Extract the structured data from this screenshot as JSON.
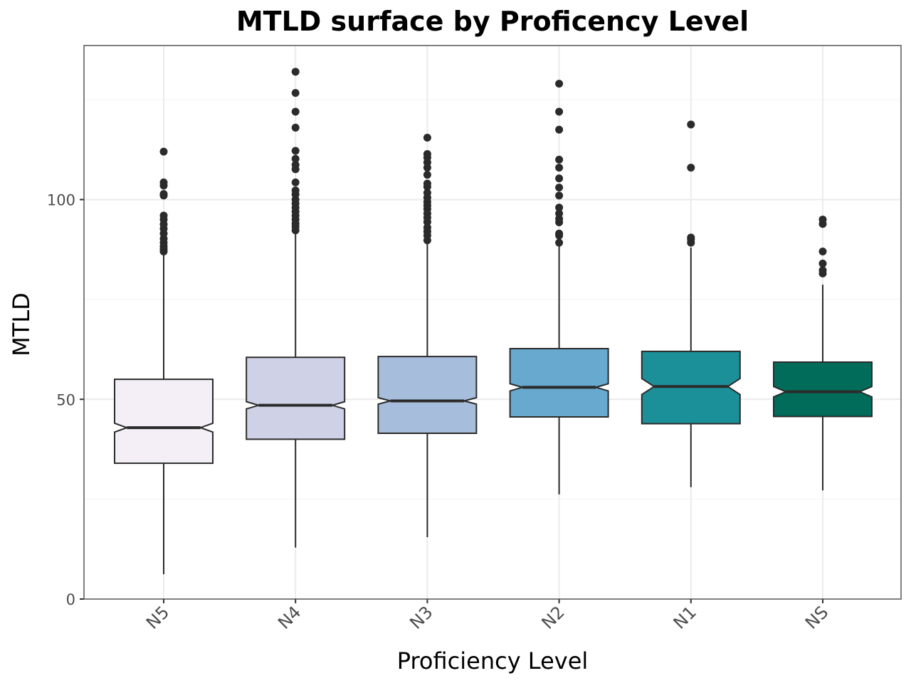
{
  "chart_data": {
    "type": "boxplot",
    "notched": true,
    "title": "MTLD surface by Proficency Level",
    "xlabel": "Proficiency Level",
    "ylabel": "MTLD",
    "ylim": [
      0,
      138
    ],
    "yticks": [
      0,
      50,
      100
    ],
    "grid": true,
    "categories": [
      "N5",
      "N4",
      "N3",
      "N2",
      "N1",
      "NS"
    ],
    "colors": [
      "#f4eef6",
      "#cfd1e6",
      "#a6bddb",
      "#67a9cf",
      "#1c9099",
      "#016c59"
    ],
    "boxes": [
      {
        "name": "N5",
        "whisker_low": 6.2,
        "q1": 34.0,
        "median": 42.9,
        "q3": 55.0,
        "whisker_high": 86.5,
        "notch_low": 41.8,
        "notch_high": 44.0,
        "outliers": [
          87.0,
          87.6,
          88.3,
          89.2,
          90.2,
          91.5,
          92.7,
          93.8,
          95.0,
          96.0,
          101.0,
          101.4,
          103.5,
          104.3,
          112.0
        ]
      },
      {
        "name": "N4",
        "whisker_low": 12.9,
        "q1": 40.0,
        "median": 48.5,
        "q3": 60.5,
        "whisker_high": 92.0,
        "notch_low": 47.6,
        "notch_high": 49.4,
        "outliers": [
          92.3,
          93.2,
          94.0,
          95.0,
          96.0,
          97.0,
          98.0,
          99.0,
          100.0,
          101.3,
          102.3,
          104.3,
          107.6,
          108.7,
          110.2,
          112.2,
          118.0,
          122.0,
          126.7,
          132.0
        ]
      },
      {
        "name": "N3",
        "whisker_low": 15.5,
        "q1": 41.5,
        "median": 49.6,
        "q3": 60.7,
        "whisker_high": 89.5,
        "notch_low": 48.8,
        "notch_high": 50.4,
        "outliers": [
          89.8,
          91.0,
          92.0,
          93.0,
          94.4,
          95.5,
          96.5,
          97.6,
          98.5,
          99.4,
          100.5,
          101.7,
          103.2,
          104.0,
          106.2,
          108.0,
          109.3,
          110.5,
          111.4,
          115.5
        ]
      },
      {
        "name": "N2",
        "whisker_low": 26.2,
        "q1": 45.6,
        "median": 53.0,
        "q3": 62.7,
        "whisker_high": 89.0,
        "notch_low": 52.1,
        "notch_high": 53.9,
        "outliers": [
          89.2,
          91.0,
          91.5,
          94.3,
          95.2,
          96.5,
          98.0,
          101.0,
          103.0,
          105.3,
          108.0,
          110.0,
          117.5,
          122.0,
          129.0
        ]
      },
      {
        "name": "N1",
        "whisker_low": 28.0,
        "q1": 43.9,
        "median": 53.2,
        "q3": 62.0,
        "whisker_high": 88.0,
        "notch_low": 51.2,
        "notch_high": 55.2,
        "outliers": [
          89.2,
          90.0,
          90.5,
          108.0,
          118.8
        ]
      },
      {
        "name": "NS",
        "whisker_low": 27.2,
        "q1": 45.7,
        "median": 51.9,
        "q3": 59.3,
        "whisker_high": 78.7,
        "notch_low": 50.6,
        "notch_high": 53.2,
        "outliers": [
          81.5,
          82.3,
          84.0,
          87.0,
          93.9,
          95.0
        ]
      }
    ]
  }
}
